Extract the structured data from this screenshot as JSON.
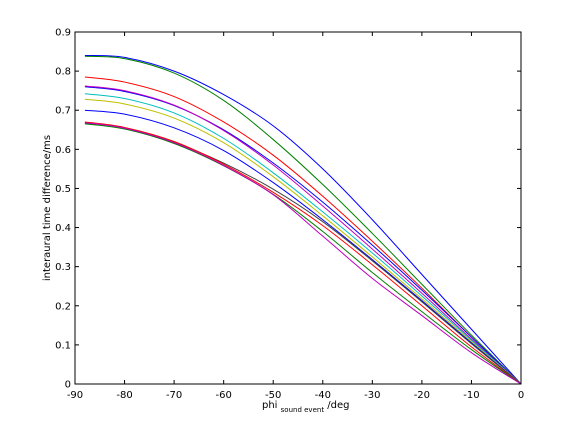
{
  "chart_data": {
    "type": "line",
    "title": "",
    "xlabel": {
      "main": "phi",
      "subscript": "sound event",
      "suffix": "/deg"
    },
    "ylabel": "interaural time difference/ms",
    "xlim": [
      -90,
      0
    ],
    "ylim": [
      0,
      0.9
    ],
    "xticks": [
      -90,
      -80,
      -70,
      -60,
      -50,
      -40,
      -30,
      -20,
      -10,
      0
    ],
    "yticks": [
      0,
      0.1,
      0.2,
      0.3,
      0.4,
      0.5,
      0.6,
      0.7,
      0.8,
      0.9
    ],
    "grid": false,
    "legend": "none",
    "series": [
      {
        "color": "#0000ff",
        "x": [
          -88,
          -80,
          -70,
          -60,
          -50,
          -40,
          -30,
          -20,
          -10,
          0
        ],
        "y": [
          0.84,
          0.835,
          0.8,
          0.74,
          0.66,
          0.55,
          0.42,
          0.28,
          0.14,
          0.0
        ]
      },
      {
        "color": "#008000",
        "x": [
          -88,
          -80,
          -70,
          -60,
          -50,
          -40,
          -30,
          -20,
          -10,
          0
        ],
        "y": [
          0.838,
          0.832,
          0.795,
          0.725,
          0.625,
          0.51,
          0.385,
          0.255,
          0.125,
          0.0
        ]
      },
      {
        "color": "#ff0000",
        "x": [
          -88,
          -80,
          -70,
          -60,
          -50,
          -40,
          -30,
          -20,
          -10,
          0
        ],
        "y": [
          0.785,
          0.772,
          0.735,
          0.67,
          0.585,
          0.48,
          0.365,
          0.245,
          0.12,
          0.0
        ]
      },
      {
        "color": "#0000ff",
        "x": [
          -88,
          -80,
          -70,
          -60,
          -50,
          -40,
          -30,
          -20,
          -10,
          0
        ],
        "y": [
          0.76,
          0.748,
          0.712,
          0.65,
          0.565,
          0.465,
          0.355,
          0.24,
          0.12,
          0.0
        ]
      },
      {
        "color": "#bf00bf",
        "x": [
          -88,
          -80,
          -70,
          -60,
          -50,
          -40,
          -30,
          -20,
          -10,
          0
        ],
        "y": [
          0.762,
          0.75,
          0.713,
          0.648,
          0.56,
          0.455,
          0.345,
          0.232,
          0.115,
          0.0
        ]
      },
      {
        "color": "#00bfbf",
        "x": [
          -88,
          -80,
          -70,
          -60,
          -50,
          -40,
          -30,
          -20,
          -10,
          0
        ],
        "y": [
          0.742,
          0.73,
          0.693,
          0.628,
          0.54,
          0.44,
          0.335,
          0.225,
          0.112,
          0.0
        ]
      },
      {
        "color": "#bfbf00",
        "x": [
          -88,
          -80,
          -70,
          -60,
          -50,
          -40,
          -30,
          -20,
          -10,
          0
        ],
        "y": [
          0.728,
          0.716,
          0.68,
          0.617,
          0.53,
          0.43,
          0.325,
          0.218,
          0.108,
          0.0
        ]
      },
      {
        "color": "#0000ff",
        "x": [
          -88,
          -80,
          -70,
          -60,
          -50,
          -40,
          -30,
          -20,
          -10,
          0
        ],
        "y": [
          0.7,
          0.69,
          0.655,
          0.597,
          0.515,
          0.42,
          0.318,
          0.213,
          0.105,
          0.0
        ]
      },
      {
        "color": "#404040",
        "x": [
          -88,
          -80,
          -70,
          -60,
          -50,
          -40,
          -30,
          -20,
          -10,
          0
        ],
        "y": [
          0.667,
          0.655,
          0.618,
          0.565,
          0.498,
          0.415,
          0.315,
          0.21,
          0.103,
          0.0
        ]
      },
      {
        "color": "#ff0000",
        "x": [
          -88,
          -80,
          -70,
          -60,
          -50,
          -40,
          -30,
          -20,
          -10,
          0
        ],
        "y": [
          0.67,
          0.656,
          0.62,
          0.562,
          0.49,
          0.405,
          0.305,
          0.2,
          0.095,
          0.0
        ]
      },
      {
        "color": "#008000",
        "x": [
          -88,
          -80,
          -70,
          -60,
          -50,
          -40,
          -30,
          -20,
          -10,
          0
        ],
        "y": [
          0.665,
          0.652,
          0.615,
          0.558,
          0.485,
          0.39,
          0.285,
          0.185,
          0.088,
          0.0
        ]
      },
      {
        "color": "#bf00bf",
        "x": [
          -88,
          -80,
          -70,
          -60,
          -50,
          -40,
          -30,
          -20,
          -10,
          0
        ],
        "y": [
          0.668,
          0.654,
          0.617,
          0.559,
          0.484,
          0.378,
          0.27,
          0.175,
          0.08,
          0.0
        ]
      }
    ]
  }
}
